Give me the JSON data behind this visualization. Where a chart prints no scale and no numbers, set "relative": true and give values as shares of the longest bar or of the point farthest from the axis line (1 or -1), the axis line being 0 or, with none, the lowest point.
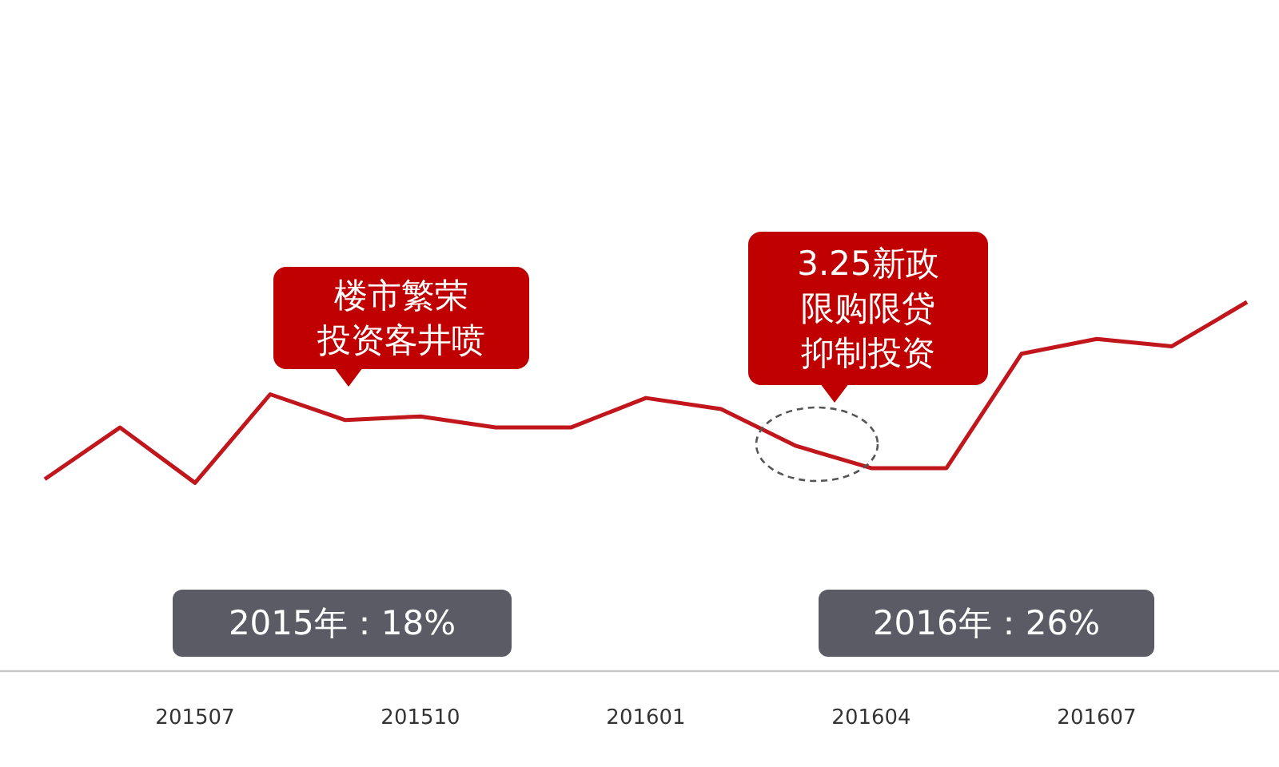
{
  "chart_data": {
    "type": "line",
    "relative": true,
    "categories": [
      null,
      null,
      "201507",
      null,
      null,
      "201510",
      null,
      null,
      "201601",
      null,
      null,
      "201604",
      null,
      null,
      "201607",
      null,
      null
    ],
    "series": [
      {
        "color": "#c0161c",
        "values": [
          0.52,
          0.66,
          0.51,
          0.75,
          0.68,
          0.69,
          0.66,
          0.66,
          0.74,
          0.71,
          0.61,
          0.55,
          0.55,
          0.86,
          0.9,
          0.88,
          1
        ]
      }
    ],
    "annotations": [
      "楼市繁荣投资客井喷",
      "3.25新政限购限贷抑制投资",
      "2015年：18%",
      "2016年：26%"
    ],
    "grid": false,
    "marker": "none",
    "line_style": "solid"
  }
}
